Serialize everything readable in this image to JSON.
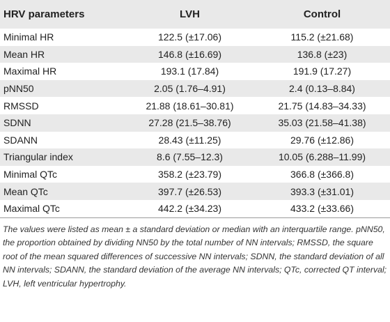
{
  "table": {
    "headers": [
      "HRV parameters",
      "LVH",
      "Control"
    ],
    "rows": [
      [
        "Minimal HR",
        "122.5 (±17.06)",
        "115.2 (±21.68)"
      ],
      [
        "Mean HR",
        "146.8 (±16.69)",
        "136.8 (±23)"
      ],
      [
        "Maximal HR",
        "193.1 (17.84)",
        "191.9 (17.27)"
      ],
      [
        "pNN50",
        "2.05 (1.76–4.91)",
        "2.4 (0.13–8.84)"
      ],
      [
        "RMSSD",
        "21.88 (18.61–30.81)",
        "21.75 (14.83–34.33)"
      ],
      [
        "SDNN",
        "27.28 (21.5–38.76)",
        "35.03 (21.58–41.38)"
      ],
      [
        "SDANN",
        "28.43 (±11.25)",
        "29.76 (±12.86)"
      ],
      [
        "Triangular index",
        "8.6 (7.55–12.3)",
        "10.05 (6.288–11.99)"
      ],
      [
        "Minimal QTc",
        "358.2 (±23.79)",
        "366.8 (±366.8)"
      ],
      [
        "Mean QTc",
        "397.7 (±26.53)",
        "393.3 (±31.01)"
      ],
      [
        "Maximal QTc",
        "442.2 (±34.23)",
        "433.2 (±33.66)"
      ]
    ]
  },
  "footnote": "The values were listed as mean ± a standard deviation or median with an interquartile range. pNN50, the proportion obtained by dividing NN50 by the total number of NN intervals; RMSSD, the square root of the mean squared differences of successive NN intervals; SDNN, the standard deviation of all NN intervals; SDANN, the standard deviation of the average NN intervals; QTc, corrected QT interval; LVH, left ventricular hypertrophy."
}
